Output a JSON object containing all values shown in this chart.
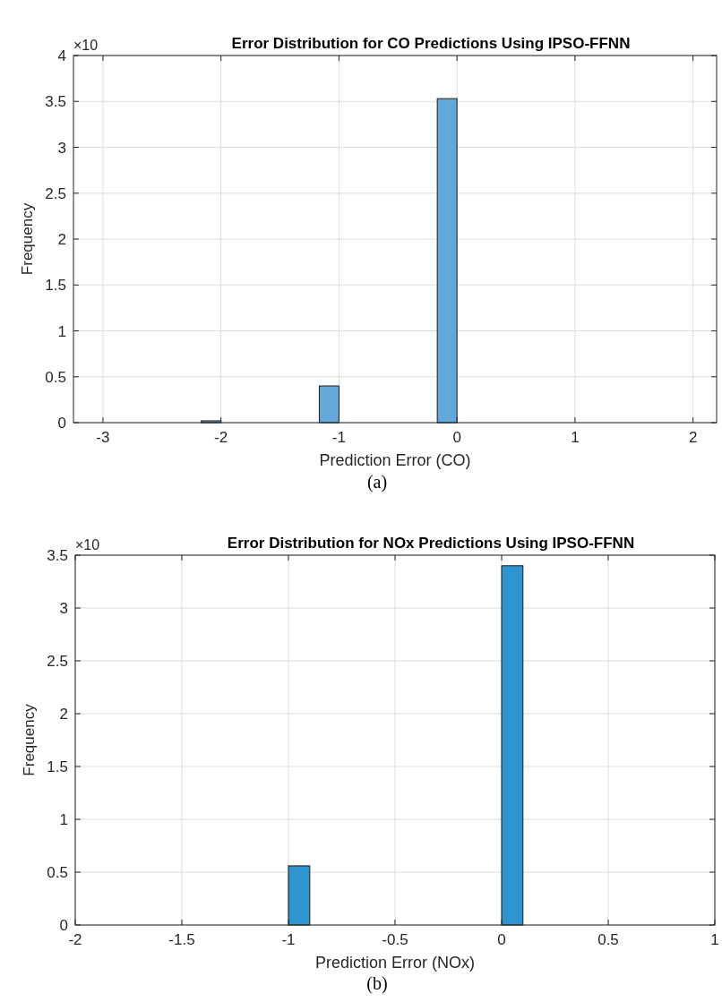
{
  "chart_data": [
    {
      "type": "histogram",
      "title": "Error Distribution for CO Predictions Using IPSO-FFNN",
      "xlabel": "Prediction Error (CO)",
      "ylabel": "Frequency",
      "annotations": [
        "×10",
        "(a)"
      ],
      "bins": [
        -3,
        -2.833,
        -2.667,
        -2.5,
        -2.333,
        -2.167,
        -2,
        -1.833,
        -1.667,
        -1.5,
        -1.333,
        -1.167,
        -1,
        -0.833,
        -0.667,
        -0.5,
        -0.333,
        -0.167,
        0,
        0.167,
        0.333,
        0.5,
        0.667,
        0.833,
        1,
        1.167,
        1.333,
        1.5,
        1.667,
        1.833,
        2
      ],
      "values": [
        0,
        0,
        0,
        0,
        0,
        0.02,
        0,
        0,
        0,
        0,
        0,
        0.4,
        0,
        0,
        0,
        0,
        0,
        3.53,
        0,
        0,
        0,
        0,
        0,
        0,
        0,
        0,
        0,
        0,
        0,
        0
      ],
      "color": "#62a8d8",
      "xlim": [
        -3.25,
        2.2
      ],
      "xticks": [
        -3,
        -2,
        -1,
        0,
        1,
        2
      ],
      "ylim": [
        0,
        4
      ],
      "yticks": [
        0,
        0.5,
        1,
        1.5,
        2,
        2.5,
        3,
        3.5,
        4
      ],
      "grid": true
    },
    {
      "type": "histogram",
      "title": "Error Distribution for NOx Predictions Using IPSO-FFNN",
      "xlabel": "Prediction Error (NOx)",
      "ylabel": "Frequency",
      "annotations": [
        "×10",
        "(b)"
      ],
      "bins": [
        -2,
        -1.9,
        -1.8,
        -1.7,
        -1.6,
        -1.5,
        -1.4,
        -1.3,
        -1.2,
        -1.1,
        -1,
        -0.9,
        -0.8,
        -0.7,
        -0.6,
        -0.5,
        -0.4,
        -0.3,
        -0.2,
        -0.1,
        0,
        0.1,
        0.2,
        0.3,
        0.4,
        0.5,
        0.6,
        0.7,
        0.8,
        0.9,
        1
      ],
      "values": [
        0,
        0,
        0,
        0,
        0,
        0,
        0,
        0,
        0,
        0,
        0.56,
        0,
        0,
        0,
        0,
        0,
        0,
        0,
        0,
        0,
        3.4,
        0,
        0,
        0,
        0,
        0,
        0,
        0,
        0,
        0
      ],
      "color": "#2f95d0",
      "xlim": [
        -2,
        1
      ],
      "xticks": [
        -2,
        -1.5,
        -1,
        -0.5,
        0,
        0.5,
        1
      ],
      "ylim": [
        0,
        3.5
      ],
      "yticks": [
        0,
        0.5,
        1,
        1.5,
        2,
        2.5,
        3,
        3.5
      ],
      "grid": true
    }
  ]
}
